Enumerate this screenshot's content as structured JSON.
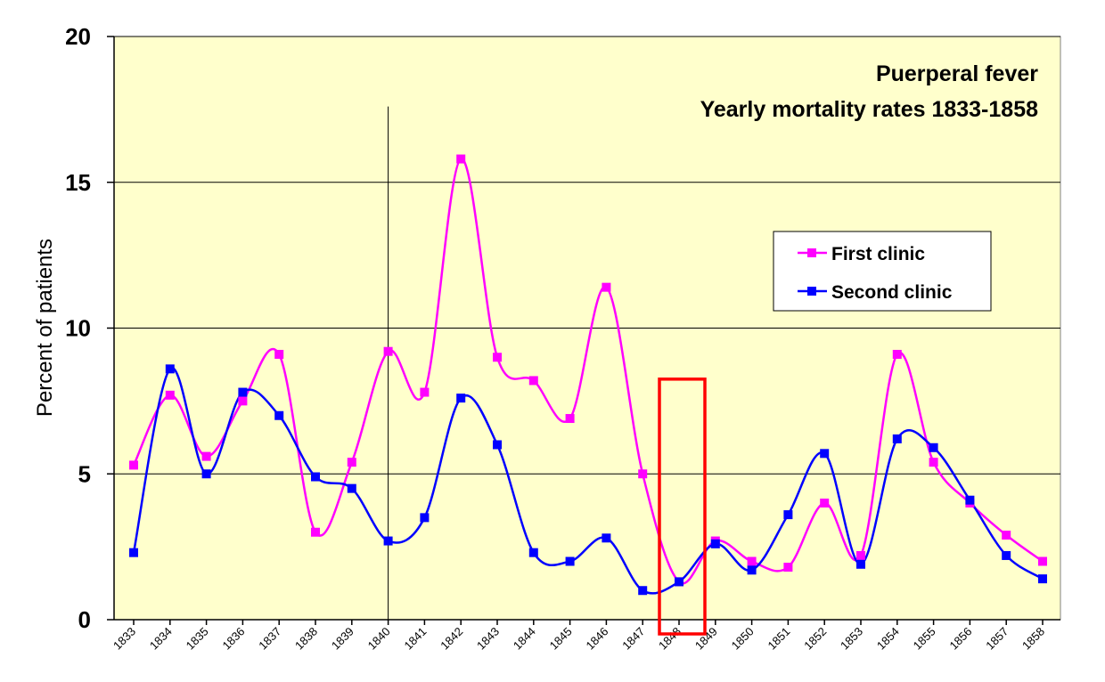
{
  "chart_data": {
    "type": "line",
    "title_lines": [
      "Puerperal fever",
      "Yearly mortality rates 1833-1858"
    ],
    "xlabel": "",
    "ylabel": "Percent of patients",
    "ylim": [
      0,
      20
    ],
    "yticks": [
      0,
      5,
      10,
      15,
      20
    ],
    "grid": true,
    "legend_position": "right",
    "categories": [
      "1833",
      "1834",
      "1835",
      "1836",
      "1837",
      "1838",
      "1839",
      "1840",
      "1841",
      "1842",
      "1843",
      "1844",
      "1845",
      "1846",
      "1847",
      "1848",
      "1849",
      "1850",
      "1851",
      "1852",
      "1853",
      "1854",
      "1855",
      "1856",
      "1857",
      "1858"
    ],
    "series": [
      {
        "name": "First clinic",
        "color": "#ff00ff",
        "values": [
          5.3,
          7.7,
          5.6,
          7.5,
          9.1,
          3.0,
          5.4,
          9.2,
          7.8,
          15.8,
          9.0,
          8.2,
          6.9,
          11.4,
          5.0,
          1.3,
          2.7,
          2.0,
          1.8,
          4.0,
          2.2,
          9.1,
          5.4,
          4.0,
          2.9,
          2.0
        ]
      },
      {
        "name": "Second clinic",
        "color": "#0000ff",
        "values": [
          2.3,
          8.6,
          5.0,
          7.8,
          7.0,
          4.9,
          4.5,
          2.7,
          3.5,
          7.6,
          6.0,
          2.3,
          2.0,
          2.8,
          1.0,
          1.3,
          2.6,
          1.7,
          3.6,
          5.7,
          1.9,
          6.2,
          5.9,
          4.1,
          2.2,
          1.4
        ]
      }
    ],
    "annotations": {
      "vertical_line_at": "1840",
      "highlight_category": "1848",
      "highlight_color": "#ff0000"
    },
    "plot_background": "#ffffcc"
  }
}
